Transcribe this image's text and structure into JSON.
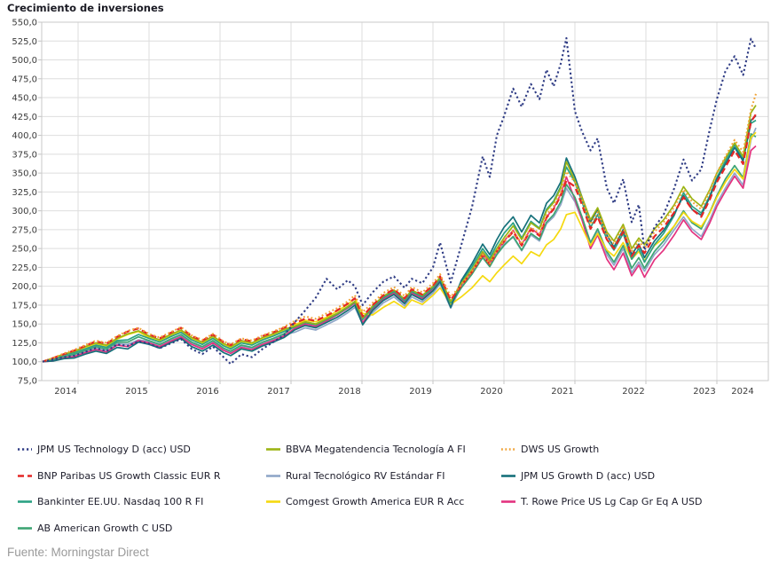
{
  "title": "Crecimiento de inversiones",
  "source": "Fuente: Morningstar Direct",
  "chart_data": {
    "type": "line",
    "title": "Crecimiento de inversiones",
    "x_axis": {
      "tick_labels": [
        "2014",
        "2015",
        "2016",
        "2017",
        "2018",
        "2019",
        "2020",
        "2021",
        "2022",
        "2023",
        "2024"
      ]
    },
    "y_axis": {
      "min": 75,
      "max": 550,
      "step": 25,
      "decimal": "comma",
      "grid": true
    },
    "x": [
      2014.5,
      2014.65,
      2014.8,
      2014.95,
      2015.1,
      2015.25,
      2015.4,
      2015.55,
      2015.7,
      2015.85,
      2016.0,
      2016.15,
      2016.3,
      2016.45,
      2016.6,
      2016.75,
      2016.9,
      2017.05,
      2017.15,
      2017.3,
      2017.45,
      2017.6,
      2017.75,
      2017.9,
      2018.05,
      2018.2,
      2018.35,
      2018.5,
      2018.65,
      2018.8,
      2018.9,
      2019.01,
      2019.15,
      2019.3,
      2019.45,
      2019.6,
      2019.7,
      2019.85,
      2020.0,
      2020.1,
      2020.25,
      2020.4,
      2020.55,
      2020.7,
      2020.8,
      2020.9,
      2021.0,
      2021.13,
      2021.25,
      2021.38,
      2021.5,
      2021.6,
      2021.7,
      2021.8,
      2021.88,
      2022.0,
      2022.1,
      2022.22,
      2022.32,
      2022.45,
      2022.55,
      2022.68,
      2022.8,
      2022.9,
      2022.98,
      2023.12,
      2023.25,
      2023.4,
      2023.53,
      2023.65,
      2023.78,
      2023.9,
      2024.0,
      2024.12,
      2024.25,
      2024.37,
      2024.48,
      2024.55
    ],
    "series": [
      {
        "key": "rural",
        "name": "Rural Tecnológico RV Estándar FI",
        "color": "#8fa6c8",
        "dash": "solid",
        "values": [
          100,
          102,
          106,
          109,
          113,
          118,
          115,
          124,
          123,
          129,
          127,
          122,
          129,
          134,
          124,
          119,
          127,
          117,
          113,
          121,
          118,
          125,
          130,
          136,
          139,
          145,
          142,
          149,
          156,
          165,
          172,
          150,
          165,
          178,
          186,
          174,
          186,
          179,
          191,
          203,
          171,
          200,
          218,
          240,
          228,
          244,
          256,
          265,
          247,
          268,
          260,
          283,
          292,
          308,
          330,
          312,
          288,
          254,
          272,
          242,
          228,
          250,
          218,
          232,
          220,
          242,
          255,
          275,
          292,
          276,
          266,
          288,
          310,
          330,
          350,
          334,
          394,
          410
        ]
      },
      {
        "key": "trowe",
        "name": "T. Rowe Price US Lg Cap Gr Eq A USD",
        "color": "#e3327f",
        "dash": "solid",
        "values": [
          100,
          101,
          105,
          107,
          112,
          116,
          113,
          122,
          120,
          128,
          125,
          120,
          127,
          133,
          123,
          117,
          125,
          115,
          111,
          119,
          116,
          123,
          128,
          134,
          144,
          150,
          147,
          154,
          162,
          171,
          178,
          152,
          170,
          183,
          191,
          179,
          191,
          184,
          196,
          208,
          174,
          202,
          220,
          243,
          231,
          247,
          260,
          274,
          255,
          277,
          268,
          292,
          303,
          322,
          345,
          315,
          288,
          250,
          268,
          236,
          222,
          244,
          214,
          228,
          212,
          235,
          248,
          268,
          288,
          272,
          262,
          284,
          306,
          326,
          346,
          330,
          380,
          386
        ]
      },
      {
        "key": "ab",
        "name": "AB American Growth C USD",
        "color": "#3da473",
        "dash": "solid",
        "values": [
          100,
          103,
          107,
          110,
          115,
          120,
          117,
          126,
          126,
          133,
          128,
          123,
          130,
          136,
          126,
          120,
          128,
          118,
          114,
          122,
          119,
          126,
          131,
          137,
          147,
          153,
          150,
          157,
          164,
          173,
          180,
          158,
          172,
          185,
          193,
          181,
          193,
          186,
          198,
          210,
          176,
          198,
          216,
          238,
          226,
          242,
          254,
          266,
          248,
          270,
          262,
          285,
          295,
          312,
          335,
          318,
          292,
          258,
          276,
          246,
          232,
          254,
          224,
          238,
          224,
          246,
          260,
          280,
          300,
          284,
          276,
          298,
          320,
          342,
          360,
          344,
          402,
          398
        ]
      },
      {
        "key": "comgest",
        "name": "Comgest Growth America EUR R Acc",
        "color": "#f5d90f",
        "dash": "solid",
        "values": [
          100,
          105,
          110,
          114,
          119,
          124,
          121,
          130,
          136,
          140,
          132,
          127,
          134,
          140,
          130,
          124,
          132,
          122,
          118,
          126,
          123,
          130,
          135,
          141,
          149,
          155,
          153,
          159,
          167,
          176,
          184,
          164,
          162,
          172,
          180,
          171,
          182,
          176,
          188,
          198,
          176,
          186,
          198,
          214,
          206,
          218,
          228,
          240,
          230,
          246,
          240,
          255,
          262,
          276,
          295,
          298,
          278,
          254,
          270,
          248,
          240,
          258,
          236,
          246,
          234,
          254,
          264,
          280,
          298,
          286,
          279,
          297,
          318,
          338,
          355,
          342,
          397,
          404
        ]
      },
      {
        "key": "bankinter",
        "name": "Bankinter EE.UU. Nasdaq 100 R FI",
        "color": "#2aa183",
        "dash": "solid",
        "values": [
          100,
          104,
          109,
          112,
          117,
          122,
          119,
          128,
          129,
          136,
          131,
          126,
          133,
          139,
          129,
          123,
          131,
          121,
          117,
          125,
          122,
          129,
          134,
          140,
          146,
          152,
          149,
          156,
          163,
          172,
          179,
          156,
          172,
          185,
          193,
          181,
          193,
          186,
          198,
          210,
          178,
          206,
          226,
          250,
          237,
          255,
          270,
          284,
          264,
          286,
          277,
          302,
          313,
          332,
          358,
          338,
          312,
          278,
          295,
          262,
          248,
          270,
          236,
          250,
          232,
          255,
          270,
          294,
          324,
          306,
          297,
          320,
          344,
          366,
          388,
          368,
          416,
          420
        ]
      },
      {
        "key": "jpm_growth",
        "name": "JPM US Growth D (acc) USD",
        "color": "#15707a",
        "dash": "solid",
        "values": [
          100,
          101,
          104,
          105,
          110,
          114,
          111,
          119,
          117,
          126,
          123,
          118,
          125,
          131,
          120,
          114,
          122,
          112,
          108,
          117,
          114,
          121,
          126,
          132,
          142,
          148,
          145,
          152,
          159,
          168,
          175,
          149,
          168,
          181,
          189,
          177,
          189,
          182,
          194,
          206,
          172,
          208,
          230,
          256,
          242,
          262,
          278,
          292,
          272,
          294,
          284,
          310,
          320,
          338,
          370,
          345,
          318,
          285,
          302,
          268,
          252,
          275,
          242,
          256,
          238,
          260,
          274,
          296,
          320,
          302,
          294,
          318,
          342,
          362,
          384,
          366,
          420,
          426
        ]
      },
      {
        "key": "bbva",
        "name": "BBVA Megatendencia Tecnología A FI",
        "color": "#9cb414",
        "dash": "solid",
        "values": [
          100,
          105,
          110,
          114,
          120,
          125,
          122,
          131,
          137,
          141,
          134,
          129,
          136,
          142,
          132,
          126,
          134,
          124,
          120,
          128,
          125,
          132,
          137,
          143,
          147,
          153,
          150,
          157,
          164,
          173,
          180,
          158,
          174,
          187,
          195,
          183,
          195,
          188,
          200,
          212,
          180,
          204,
          222,
          246,
          234,
          250,
          264,
          280,
          262,
          284,
          276,
          300,
          311,
          330,
          365,
          340,
          318,
          288,
          304,
          272,
          260,
          282,
          250,
          264,
          255,
          276,
          288,
          308,
          332,
          316,
          306,
          328,
          350,
          370,
          390,
          372,
          430,
          440
        ]
      },
      {
        "key": "bnp",
        "name": "BNP Paribas US Growth Classic EUR R",
        "color": "#e32726",
        "dash": "dash",
        "values": [
          100,
          105,
          110,
          115,
          121,
          127,
          124,
          133,
          140,
          144,
          136,
          131,
          138,
          145,
          134,
          128,
          136,
          126,
          122,
          130,
          127,
          134,
          139,
          145,
          151,
          157,
          154,
          161,
          168,
          177,
          184,
          160,
          175,
          188,
          196,
          184,
          196,
          189,
          201,
          213,
          182,
          201,
          219,
          241,
          229,
          246,
          259,
          272,
          254,
          275,
          267,
          291,
          302,
          320,
          340,
          332,
          308,
          276,
          292,
          262,
          250,
          272,
          240,
          254,
          244,
          266,
          278,
          298,
          318,
          302,
          292,
          315,
          338,
          358,
          380,
          362,
          418,
          428
        ]
      },
      {
        "key": "dws",
        "name": "DWS US Growth",
        "color": "#f0a235",
        "dash": "dot",
        "values": [
          100,
          105,
          111,
          116,
          122,
          128,
          125,
          134,
          141,
          145,
          137,
          132,
          139,
          146,
          135,
          129,
          137,
          127,
          123,
          131,
          128,
          135,
          140,
          146,
          154,
          160,
          157,
          164,
          171,
          180,
          188,
          166,
          178,
          191,
          199,
          187,
          199,
          192,
          204,
          216,
          186,
          202,
          220,
          242,
          230,
          247,
          260,
          274,
          256,
          278,
          270,
          295,
          306,
          324,
          352,
          338,
          315,
          282,
          298,
          268,
          256,
          278,
          246,
          260,
          250,
          272,
          285,
          305,
          328,
          312,
          302,
          326,
          350,
          372,
          394,
          378,
          434,
          455
        ]
      },
      {
        "key": "jpm_tech",
        "name": "JPM US Technology D (acc) USD",
        "color": "#303d85",
        "dash": "dot-square",
        "values": [
          100,
          103,
          106,
          108,
          113,
          118,
          114,
          123,
          121,
          127,
          124,
          118,
          124,
          130,
          117,
          110,
          120,
          106,
          97,
          110,
          106,
          117,
          126,
          135,
          152,
          168,
          185,
          210,
          196,
          208,
          200,
          175,
          192,
          206,
          213,
          198,
          210,
          204,
          225,
          258,
          205,
          255,
          305,
          372,
          345,
          400,
          425,
          462,
          438,
          468,
          448,
          487,
          465,
          495,
          529,
          432,
          405,
          380,
          396,
          330,
          310,
          342,
          285,
          308,
          248,
          278,
          295,
          330,
          368,
          340,
          355,
          408,
          448,
          485,
          505,
          480,
          528,
          515
        ]
      }
    ]
  },
  "legend": {
    "columns": [
      [
        "jpm_tech",
        "bnp",
        "bankinter",
        "ab"
      ],
      [
        "bbva",
        "rural",
        "comgest"
      ],
      [
        "dws",
        "jpm_growth",
        "trowe"
      ]
    ]
  }
}
